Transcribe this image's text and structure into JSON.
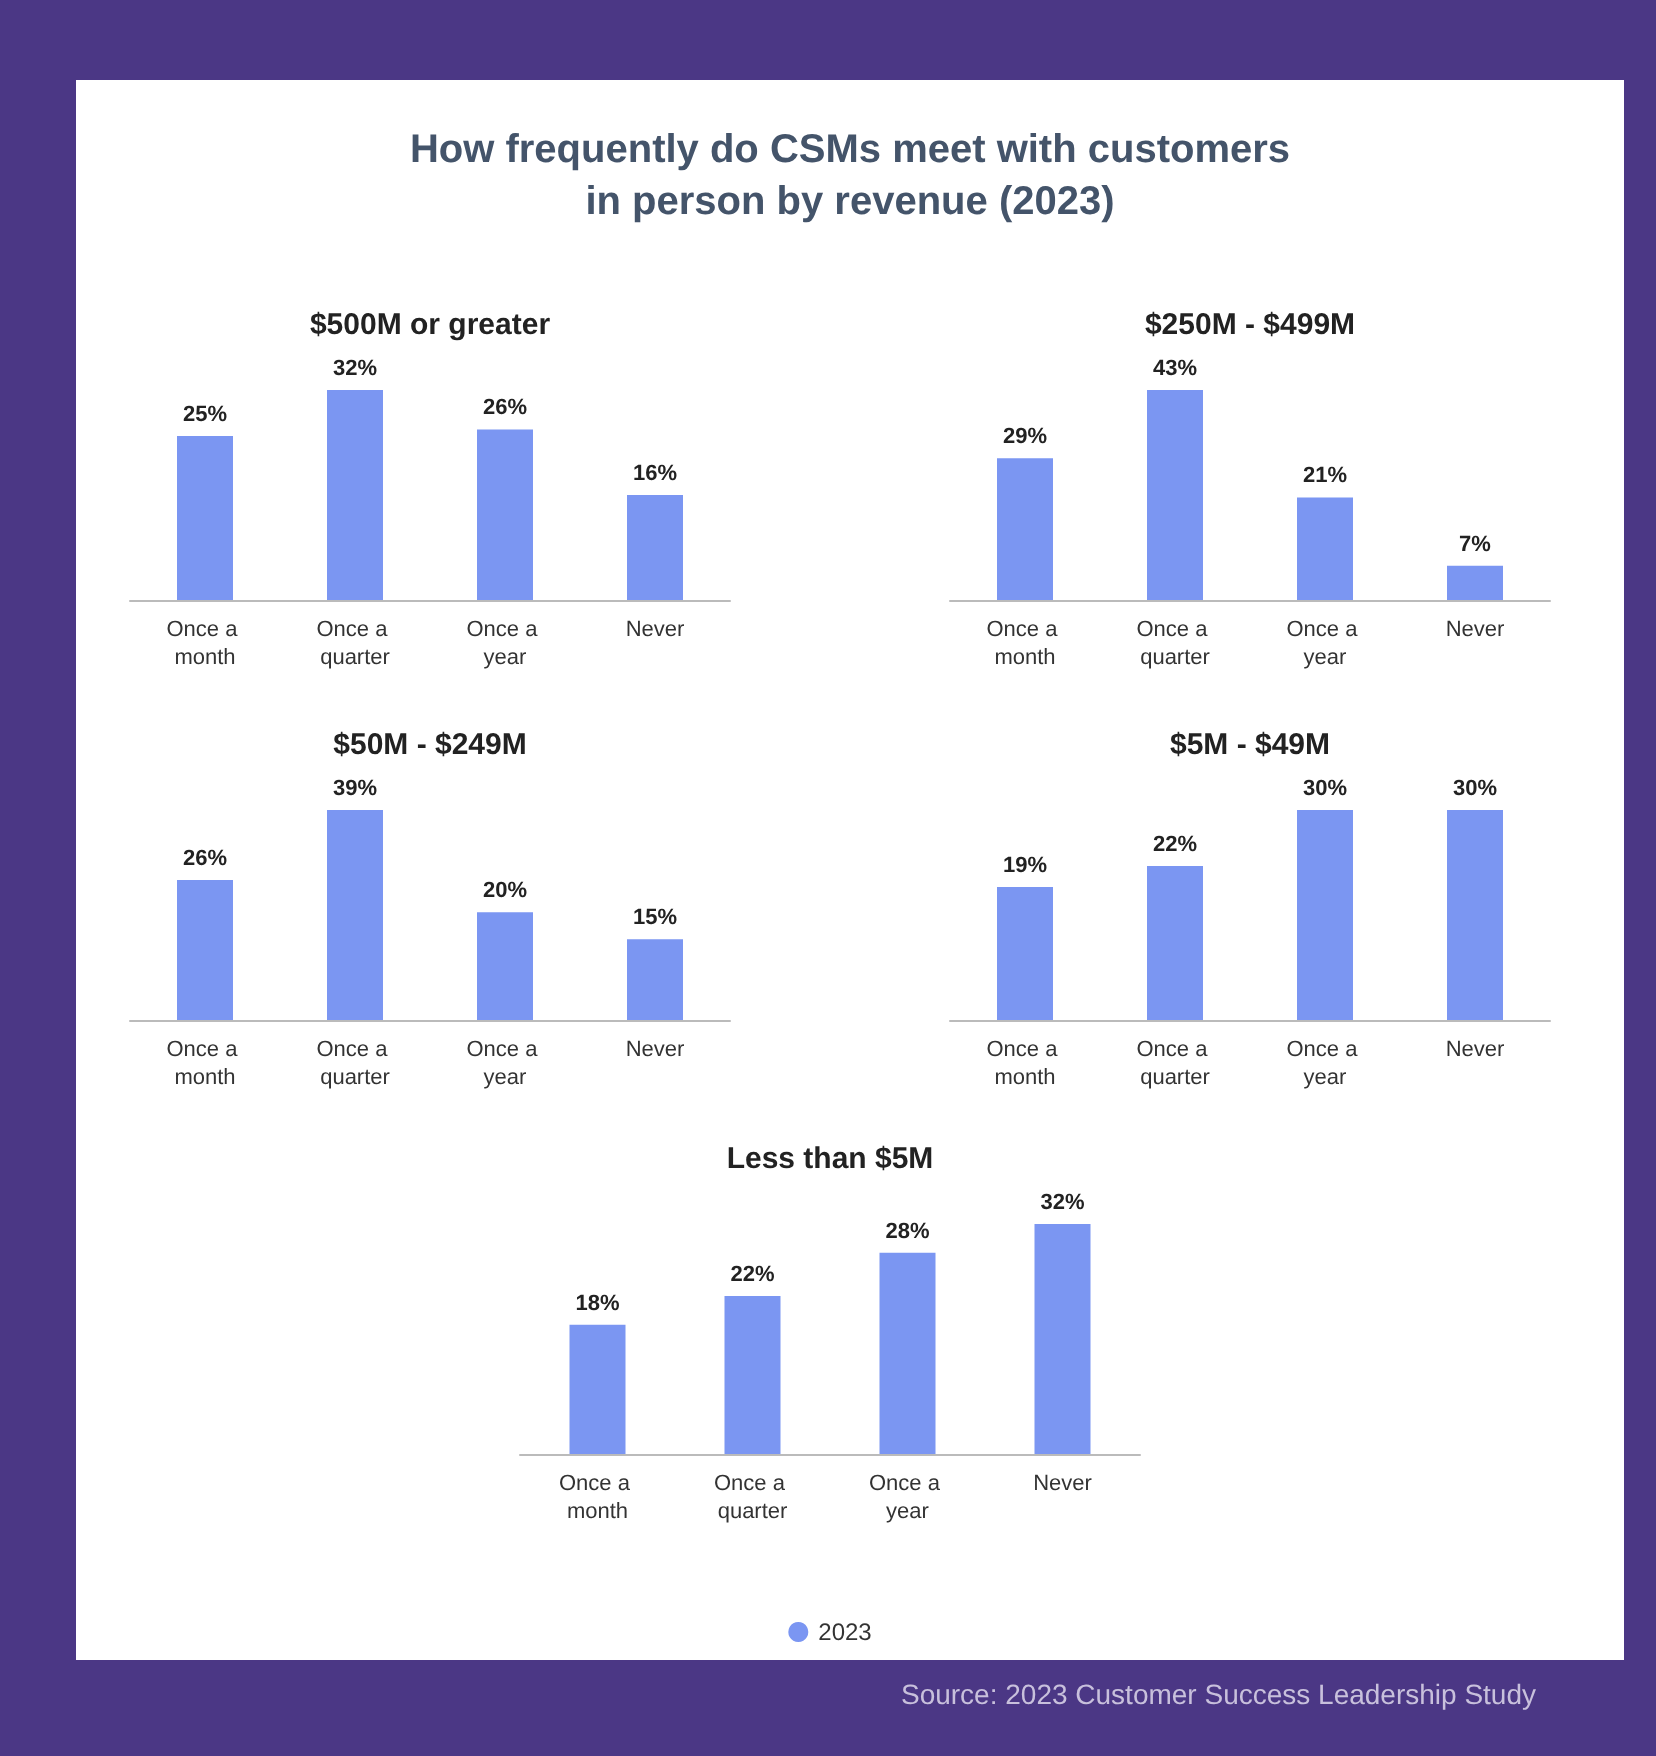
{
  "chart_data": [
    {
      "type": "other",
      "title": "How frequently do CSMs meet with customers in person by revenue (2023)",
      "annotations": [
        "Source: 2023 Customer Success Leadership Study"
      ]
    },
    {
      "type": "bar",
      "title": "$500M or greater",
      "categories": [
        "Once a month",
        "Once a quarter",
        "Once a year",
        "Never"
      ],
      "values": [
        25,
        32,
        26,
        16
      ],
      "value_labels": [
        "25%",
        "32%",
        "26%",
        "16%"
      ],
      "color": "#7b96f2",
      "legend": false
    },
    {
      "type": "bar",
      "title": "$250M - $499M",
      "categories": [
        "Once a month",
        "Once a quarter",
        "Once a year",
        "Never"
      ],
      "values": [
        29,
        43,
        21,
        7
      ],
      "value_labels": [
        "29%",
        "43%",
        "21%",
        "7%"
      ],
      "color": "#7b96f2",
      "legend": false
    },
    {
      "type": "bar",
      "title": "$50M - $249M",
      "categories": [
        "Once a month",
        "Once a quarter",
        "Once a year",
        "Never"
      ],
      "values": [
        26,
        39,
        20,
        15
      ],
      "value_labels": [
        "26%",
        "39%",
        "20%",
        "15%"
      ],
      "color": "#7b96f2",
      "legend": false
    },
    {
      "type": "bar",
      "title": "$5M - $49M",
      "categories": [
        "Once a month",
        "Once a quarter",
        "Once a year",
        "Never"
      ],
      "values": [
        19,
        22,
        30,
        30
      ],
      "value_labels": [
        "19%",
        "22%",
        "30%",
        "30%"
      ],
      "color": "#7b96f2",
      "legend": false
    },
    {
      "type": "bar",
      "title": "Less than $5M",
      "categories": [
        "Once a month",
        "Once a quarter",
        "Once a year",
        "Never"
      ],
      "series": [
        {
          "name": "2023",
          "color": "#7b96f2",
          "values": [
            18,
            22,
            28,
            32
          ],
          "value_labels": [
            "18%",
            "22%",
            "28%",
            "32%"
          ]
        }
      ],
      "legend": "bottom"
    }
  ]
}
